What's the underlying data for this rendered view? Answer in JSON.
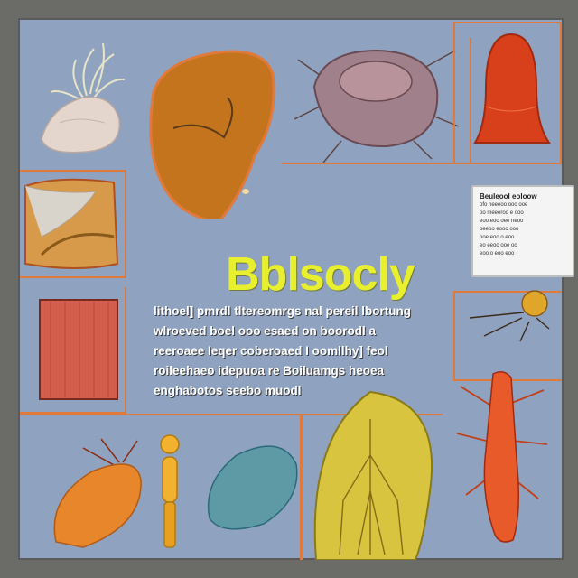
{
  "poster": {
    "title": "Bblsocly",
    "body_lines": [
      "lithoel] pmrdl tltereomrgs nal pereil lbortung",
      "wlroeved boel ooo esaed on boorodl a",
      "reeroaee Ieqer coberoaed I oomllhy] feol",
      "roileehaeo idepuoa re Boiluamgs heoea",
      "enghabotos seebo muodl"
    ],
    "info_card": {
      "title": "Beuleool eoloow",
      "lines": [
        "ofo neeeoo ooo ooe",
        "oo meeeroo e ooo",
        "eoo eoo oee neoo",
        "oeeoo eooo ooo",
        "ooe eoo o eoo",
        "eo eeoo ooe oo",
        "eoo o eoo eoo"
      ]
    }
  },
  "colors": {
    "background": "#8fa2bf",
    "frame": "#6b6b67",
    "panel_border": "#e07a3c",
    "title": "#e7ef2e"
  },
  "specimens": [
    "anemone-specimen",
    "liver-specimen",
    "tick-specimen",
    "red-bell-specimen",
    "tissue-section-specimen",
    "muscle-block-specimen",
    "seed-pod-specimen",
    "mite-specimen",
    "leaf-pod-specimen",
    "yellow-figure-specimen",
    "blue-stone-specimen",
    "yellow-branched-specimen",
    "orange-insect-specimen"
  ]
}
